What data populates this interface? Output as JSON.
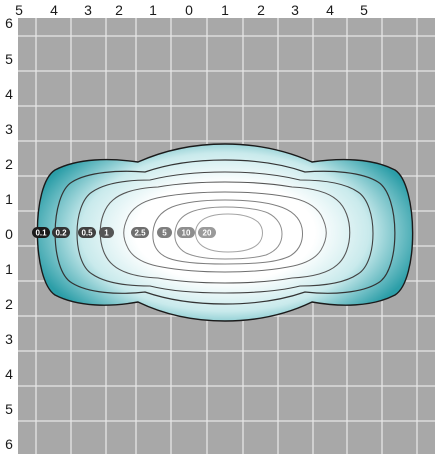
{
  "diagram": {
    "x_axis_top_labels": [
      "5",
      "4",
      "3",
      "2",
      "1",
      "0",
      "1",
      "2",
      "3",
      "4",
      "5"
    ],
    "y_axis_left_labels": [
      "6",
      "5",
      "4",
      "3",
      "2",
      "1",
      "0",
      "1",
      "2",
      "3",
      "4",
      "5",
      "6"
    ],
    "contour_labels": [
      {
        "text": "0.1",
        "color": "#1a1a1a"
      },
      {
        "text": "0.2",
        "color": "#333333"
      },
      {
        "text": "0.5",
        "color": "#404040"
      },
      {
        "text": "1",
        "color": "#555555"
      },
      {
        "text": "2.5",
        "color": "#6e6e6e"
      },
      {
        "text": "5",
        "color": "#7e7e7e"
      },
      {
        "text": "10",
        "color": "#8e8e8e"
      },
      {
        "text": "20",
        "color": "#9a9a9a"
      }
    ],
    "colors": {
      "background_grid": "#a8a8a8",
      "grid_lines": "#e6e6e6",
      "fill_outer": "#2fa0aa",
      "fill_center": "#ffffff",
      "outline": "#1a1a1a"
    }
  }
}
